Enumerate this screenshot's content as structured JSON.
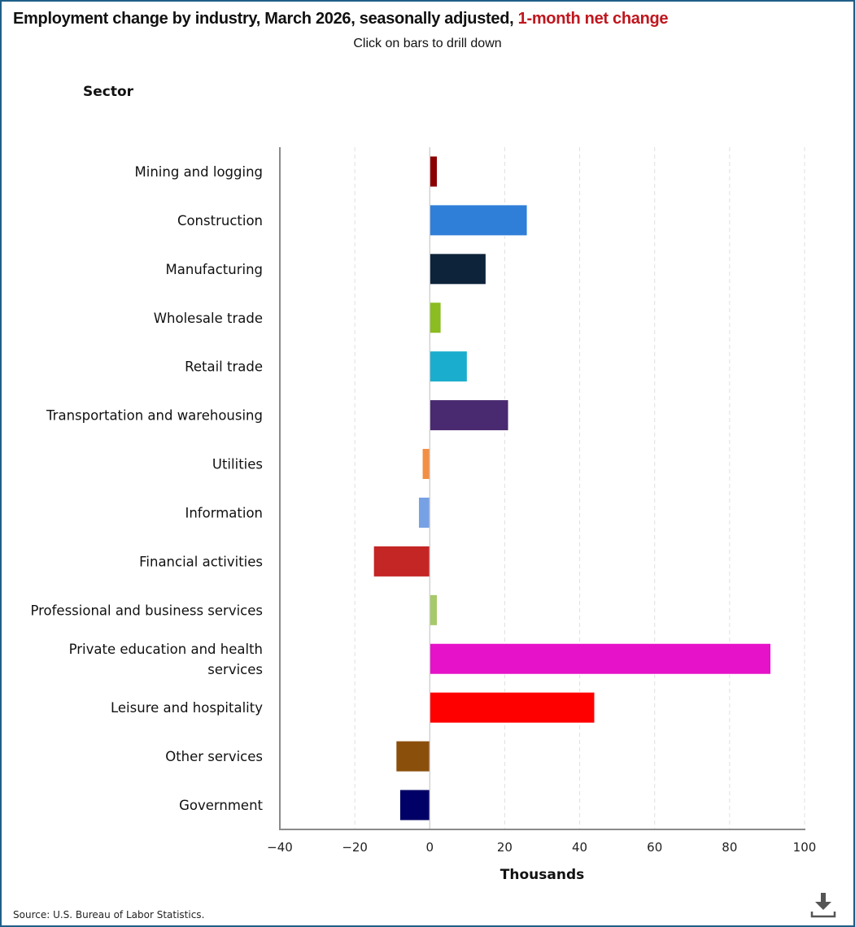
{
  "header": {
    "title_main": "Employment change by industry, March 2026, seasonally adjusted, ",
    "title_accent": "1-month net change",
    "subtitle": "Click on bars to drill down",
    "sector_label": "Sector"
  },
  "footer": {
    "source": "Source: U.S. Bureau of Labor Statistics.",
    "download_icon": "download-icon"
  },
  "colors": {
    "accent": "#c0161e",
    "border": "#1f5f88"
  },
  "chart_data": {
    "type": "bar",
    "orientation": "horizontal",
    "title": "Employment change by industry, March 2026, seasonally adjusted, 1-month net change",
    "subtitle": "Click on bars to drill down",
    "xlabel": "Thousands",
    "ylabel": "Sector",
    "xlim": [
      -40,
      100
    ],
    "xticks": [
      -40,
      -20,
      0,
      20,
      40,
      60,
      80,
      100
    ],
    "xtick_labels": [
      "−40",
      "−20",
      "0",
      "20",
      "40",
      "60",
      "80",
      "100"
    ],
    "grid": "vertical dashed",
    "legend": "none",
    "categories": [
      [
        "Mining and logging"
      ],
      [
        "Construction"
      ],
      [
        "Manufacturing"
      ],
      [
        "Wholesale trade"
      ],
      [
        "Retail trade"
      ],
      [
        "Transportation and warehousing"
      ],
      [
        "Utilities"
      ],
      [
        "Information"
      ],
      [
        "Financial activities"
      ],
      [
        "Professional and business services"
      ],
      [
        "Private education and health",
        "services"
      ],
      [
        "Leisure and hospitality"
      ],
      [
        "Other services"
      ],
      [
        "Government"
      ]
    ],
    "values": [
      2,
      26,
      15,
      3,
      10,
      21,
      -2,
      -3,
      -15,
      2,
      91,
      44,
      -9,
      -8
    ],
    "bar_colors": [
      "#8b0000",
      "#2f7ed8",
      "#0d233a",
      "#8bbc21",
      "#1aadce",
      "#492970",
      "#f28f43",
      "#77a1e5",
      "#c42525",
      "#a6c96a",
      "#e612c9",
      "#ff0000",
      "#8b4f0c",
      "#000066"
    ],
    "source": "Source: U.S. Bureau of Labor Statistics."
  }
}
